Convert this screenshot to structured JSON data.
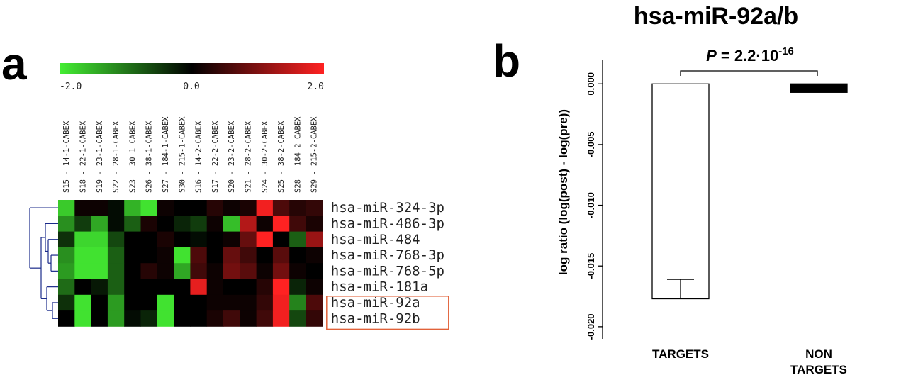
{
  "figure": {
    "title": "hsa-miR-92a/b",
    "panel_a_letter": "a",
    "panel_b_letter": "b"
  },
  "chart_data": [
    {
      "type": "heatmap",
      "colorbar": {
        "min_label": "-2.0",
        "mid_label": "0.0",
        "max_label": "2.0",
        "colors": [
          "#44ee33",
          "#000000",
          "#ff2222"
        ]
      },
      "columns": [
        "S15 - 14-1-CABEX",
        "S18 - 22-1-CABEX",
        "S19 - 23-1-CABEX",
        "S22 - 28-1-CABEX",
        "S23 - 30-1-CABEX",
        "S26 - 38-1-CABEX",
        "S27 - 184-1-CABEX",
        "S30 - 215-1-CABEX",
        "S16 - 14-2-CABEX",
        "S17 - 22-2-CABEX",
        "S20 - 23-2-CABEX",
        "S21 - 28-2-CABEX",
        "S24 - 30-2-CABEX",
        "S25 - 38-2-CABEX",
        "S28 - 184-2-CABEX",
        "S29 - 215-2-CABEX"
      ],
      "rows": [
        "hsa-miR-324-3p",
        "hsa-miR-486-3p",
        "hsa-miR-484",
        "hsa-miR-768-3p",
        "hsa-miR-768-5p",
        "hsa-miR-181a",
        "hsa-miR-92a",
        "hsa-miR-92b"
      ],
      "values": [
        [
          -1.7,
          0.1,
          0.1,
          -0.1,
          -1.5,
          -1.9,
          0.1,
          0.0,
          0.0,
          0.3,
          0.1,
          0.2,
          1.9,
          0.6,
          0.3,
          0.4
        ],
        [
          -1.2,
          -0.5,
          -1.4,
          -0.1,
          -0.8,
          0.2,
          0.0,
          -0.3,
          -0.5,
          0.1,
          -1.6,
          1.4,
          0.1,
          2.0,
          0.5,
          0.2
        ],
        [
          -0.4,
          -1.8,
          -1.8,
          -0.6,
          0.0,
          0.0,
          0.2,
          0.0,
          -0.1,
          0.0,
          0.1,
          0.8,
          2.0,
          0.0,
          -0.8,
          1.2
        ],
        [
          -1.2,
          -1.9,
          -1.9,
          -0.8,
          0.0,
          0.0,
          0.1,
          -1.9,
          0.6,
          0.0,
          0.8,
          0.5,
          0.0,
          0.7,
          0.0,
          0.1
        ],
        [
          -1.3,
          -1.9,
          -1.9,
          -0.8,
          0.0,
          0.3,
          0.1,
          -1.4,
          0.5,
          0.1,
          0.9,
          0.7,
          0.1,
          0.9,
          0.1,
          0.0
        ],
        [
          -0.9,
          0.0,
          -0.2,
          -0.8,
          0.0,
          0.0,
          0.0,
          0.0,
          1.8,
          0.1,
          0.0,
          0.0,
          0.3,
          2.0,
          -0.3,
          0.1
        ],
        [
          -0.4,
          -1.9,
          0.0,
          -1.3,
          0.0,
          0.0,
          -1.9,
          0.0,
          0.0,
          0.1,
          0.1,
          0.1,
          0.4,
          1.9,
          -1.1,
          0.6
        ],
        [
          0.0,
          -1.9,
          0.0,
          -1.3,
          -0.1,
          -0.3,
          -1.9,
          0.0,
          0.0,
          0.2,
          0.5,
          0.1,
          0.5,
          1.9,
          -0.6,
          0.4
        ]
      ],
      "highlighted_rows": [
        "hsa-miR-92a",
        "hsa-miR-92b"
      ],
      "highlight_color": "#e2623a",
      "dendrogram_color": "#1a2a8a"
    },
    {
      "type": "bar",
      "title": "hsa-miR-92a/b",
      "categories": [
        "TARGETS",
        "NON\nTARGETS"
      ],
      "category_lines": [
        [
          "TARGETS"
        ],
        [
          "NON",
          "TARGETS"
        ]
      ],
      "values": [
        -0.0177,
        -0.0007
      ],
      "errors": [
        0.0016,
        0.0005
      ],
      "colors": [
        "#ffffff",
        "#000000"
      ],
      "ylabel": "log ratio (log(post) - log(pre))",
      "ylim": [
        -0.021,
        0.002
      ],
      "yticks": [
        0.0,
        -0.005,
        -0.01,
        -0.015,
        -0.02
      ],
      "ytick_labels": [
        "0.000",
        "-0.005",
        "-0.010",
        "-0.015",
        "-0.020"
      ],
      "annotation": {
        "p_prefix": "P",
        "p_equals": " = 2.2·10",
        "p_exponent": "-16"
      }
    }
  ]
}
